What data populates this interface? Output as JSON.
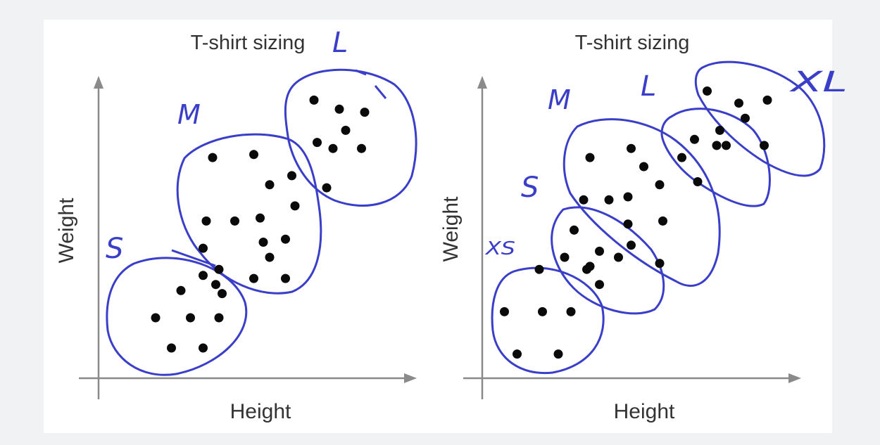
{
  "chart_data": [
    {
      "type": "scatter",
      "title": "T-shirt sizing",
      "xlabel": "Height",
      "ylabel": "Weight",
      "axis_ticks": false,
      "grid": false,
      "clusters": [
        {
          "label": "S",
          "color": "#3a3ec8",
          "points": [
            [
              0.26,
              0.29
            ],
            [
              0.33,
              0.34
            ],
            [
              0.18,
              0.2
            ],
            [
              0.29,
              0.2
            ],
            [
              0.37,
              0.31
            ],
            [
              0.39,
              0.28
            ],
            [
              0.23,
              0.1
            ],
            [
              0.33,
              0.1
            ],
            [
              0.38,
              0.2
            ]
          ]
        },
        {
          "label": "M",
          "color": "#3a3ec8",
          "points": [
            [
              0.36,
              0.73
            ],
            [
              0.49,
              0.74
            ],
            [
              0.54,
              0.64
            ],
            [
              0.34,
              0.52
            ],
            [
              0.43,
              0.52
            ],
            [
              0.51,
              0.53
            ],
            [
              0.52,
              0.45
            ],
            [
              0.59,
              0.46
            ],
            [
              0.54,
              0.4
            ],
            [
              0.33,
              0.43
            ],
            [
              0.38,
              0.36
            ],
            [
              0.49,
              0.33
            ],
            [
              0.59,
              0.33
            ],
            [
              0.61,
              0.67
            ],
            [
              0.62,
              0.57
            ]
          ]
        },
        {
          "label": "L",
          "color": "#3a3ec8",
          "points": [
            [
              0.68,
              0.92
            ],
            [
              0.76,
              0.89
            ],
            [
              0.84,
              0.88
            ],
            [
              0.78,
              0.82
            ],
            [
              0.69,
              0.78
            ],
            [
              0.74,
              0.76
            ],
            [
              0.83,
              0.76
            ],
            [
              0.72,
              0.63
            ]
          ]
        }
      ]
    },
    {
      "type": "scatter",
      "title": "T-shirt sizing",
      "xlabel": "Height",
      "ylabel": "Weight",
      "axis_ticks": false,
      "grid": false,
      "clusters": [
        {
          "label": "XS",
          "color": "#3a3ec8",
          "points": [
            [
              0.07,
              0.22
            ],
            [
              0.19,
              0.22
            ],
            [
              0.28,
              0.22
            ],
            [
              0.18,
              0.36
            ],
            [
              0.11,
              0.08
            ],
            [
              0.24,
              0.08
            ]
          ]
        },
        {
          "label": "S",
          "color": "#3a3ec8",
          "points": [
            [
              0.29,
              0.49
            ],
            [
              0.26,
              0.4
            ],
            [
              0.37,
              0.42
            ],
            [
              0.34,
              0.37
            ],
            [
              0.37,
              0.31
            ],
            [
              0.43,
              0.4
            ],
            [
              0.33,
              0.36
            ]
          ]
        },
        {
          "label": "M",
          "color": "#3a3ec8",
          "points": [
            [
              0.34,
              0.73
            ],
            [
              0.47,
              0.76
            ],
            [
              0.51,
              0.7
            ],
            [
              0.32,
              0.59
            ],
            [
              0.4,
              0.59
            ],
            [
              0.46,
              0.6
            ],
            [
              0.56,
              0.64
            ],
            [
              0.46,
              0.51
            ],
            [
              0.57,
              0.52
            ],
            [
              0.47,
              0.44
            ],
            [
              0.56,
              0.38
            ]
          ]
        },
        {
          "label": "L",
          "color": "#3a3ec8",
          "points": [
            [
              0.67,
              0.79
            ],
            [
              0.74,
              0.77
            ],
            [
              0.77,
              0.77
            ],
            [
              0.63,
              0.73
            ],
            [
              0.68,
              0.65
            ]
          ]
        },
        {
          "label": "XL",
          "color": "#3a3ec8",
          "points": [
            [
              0.71,
              0.95
            ],
            [
              0.81,
              0.91
            ],
            [
              0.9,
              0.92
            ],
            [
              0.83,
              0.86
            ],
            [
              0.89,
              0.77
            ],
            [
              0.75,
              0.82
            ]
          ]
        }
      ]
    }
  ]
}
